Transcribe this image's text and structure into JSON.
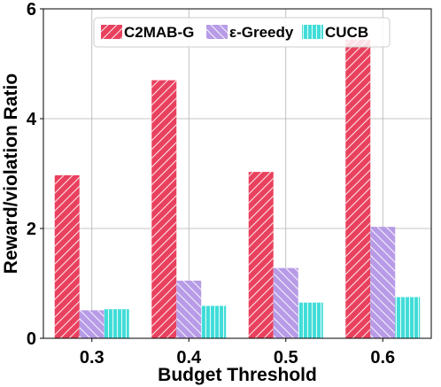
{
  "chart_data": {
    "type": "bar",
    "title": "",
    "xlabel": "Budget Threshold",
    "ylabel": "Reward/violation Ratio",
    "categories": [
      "0.3",
      "0.4",
      "0.5",
      "0.6"
    ],
    "ylim": [
      0,
      6
    ],
    "yticks": [
      "0",
      "2",
      "4",
      "6"
    ],
    "grid": true,
    "legend_position": "top",
    "series": [
      {
        "name": "C2MAB-G",
        "values": [
          2.97,
          4.7,
          3.03,
          5.44
        ],
        "color": "#e8415e",
        "hatch": "/"
      },
      {
        "name": "ε-Greedy",
        "values": [
          0.51,
          1.05,
          1.28,
          2.03
        ],
        "color": "#b79be6",
        "hatch": "\\"
      },
      {
        "name": "CUCB",
        "values": [
          0.53,
          0.59,
          0.65,
          0.75
        ],
        "color": "#3fdcd8",
        "hatch": "|"
      }
    ]
  }
}
